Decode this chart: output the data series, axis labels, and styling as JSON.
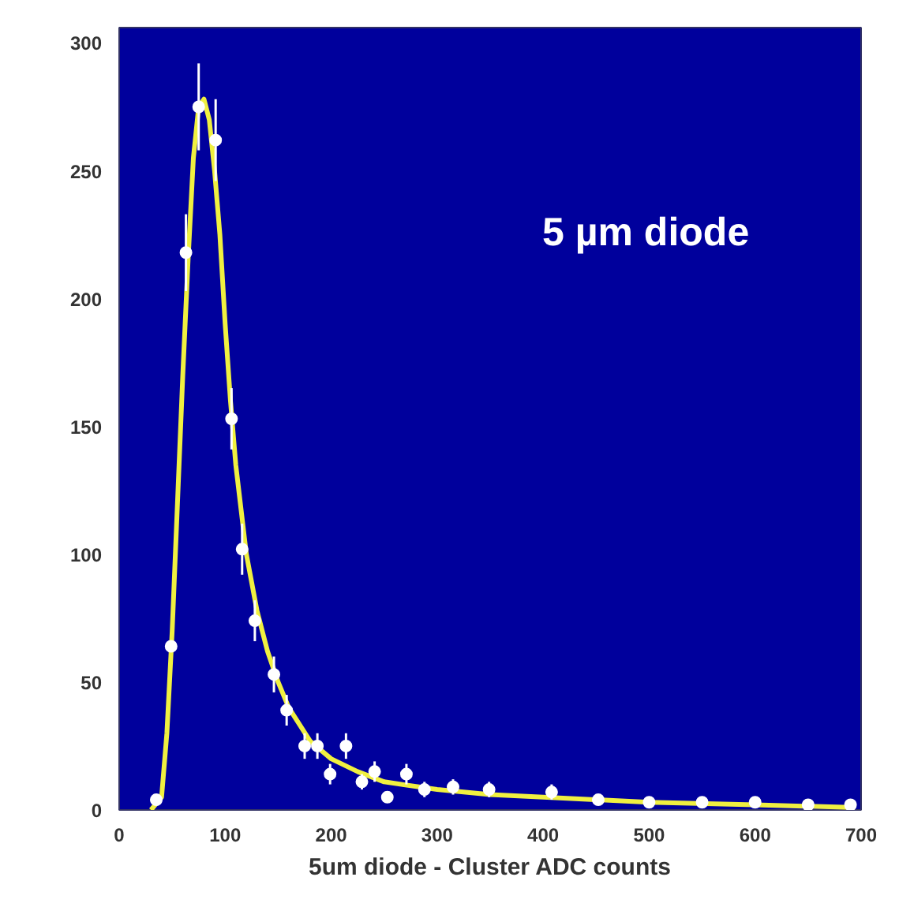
{
  "chart_data": {
    "type": "scatter",
    "xlabel": "5um diode - Cluster ADC counts",
    "annotations": [
      "5 µm diode"
    ],
    "xlim": [
      0,
      700
    ],
    "ylim": [
      0,
      306
    ],
    "xticks": [
      0,
      100,
      200,
      300,
      400,
      500,
      600,
      700
    ],
    "yticks": [
      0,
      50,
      100,
      150,
      200,
      250,
      300
    ],
    "grid": false,
    "series": [
      {
        "color": "#ffffff",
        "marker": "circle",
        "x": [
          35,
          49,
          63,
          75,
          91,
          106,
          116,
          128,
          146,
          158,
          175,
          187,
          199,
          214,
          229,
          241,
          253,
          271,
          288,
          315,
          349,
          408,
          452,
          500,
          550,
          600,
          650,
          690
        ],
        "values": [
          4,
          64,
          218,
          275,
          262,
          153,
          102,
          74,
          53,
          39,
          25,
          25,
          14,
          25,
          11,
          15,
          5,
          14,
          8,
          9,
          8,
          7,
          4,
          3,
          3,
          3,
          2,
          2
        ],
        "errors": [
          2,
          null,
          15,
          17,
          16,
          12,
          10,
          8,
          7,
          6,
          5,
          5,
          4,
          5,
          3,
          4,
          2,
          4,
          3,
          3,
          3,
          3,
          2,
          2,
          2,
          2,
          1,
          1
        ]
      },
      {
        "type": "line",
        "color": "#f0f040",
        "line_style": "solid",
        "x": [
          30,
          40,
          45,
          50,
          55,
          60,
          65,
          70,
          75,
          80,
          85,
          90,
          95,
          100,
          105,
          110,
          120,
          130,
          140,
          150,
          160,
          180,
          200,
          225,
          250,
          300,
          350,
          400,
          500,
          600,
          690
        ],
        "values": [
          0,
          5,
          30,
          70,
          120,
          170,
          215,
          255,
          275,
          278,
          270,
          250,
          225,
          190,
          160,
          135,
          100,
          78,
          62,
          50,
          40,
          27,
          20,
          15,
          11,
          8,
          6,
          5,
          3,
          2,
          1
        ]
      }
    ]
  }
}
